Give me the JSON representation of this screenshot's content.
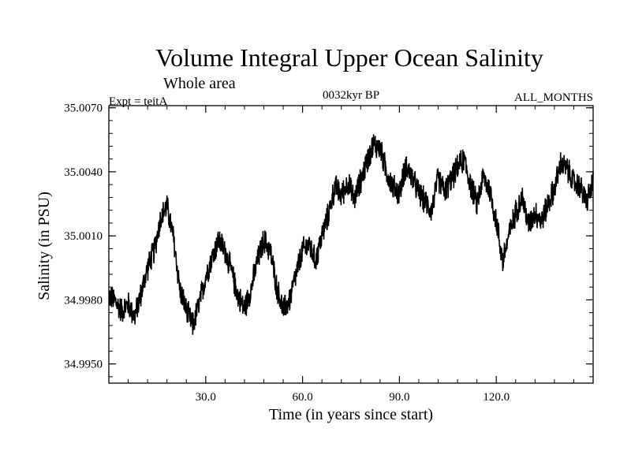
{
  "chart_data": {
    "type": "line",
    "title": "Volume Integral Upper Ocean Salinity",
    "subtitle": "Whole area",
    "experiment_label": "Expt = teitA",
    "period_label": "0032kyr BP",
    "months_label": "ALL_MONTHS",
    "xlabel": "Time (in years since start)",
    "ylabel": "Salinity (in PSU)",
    "xlim": [
      0.0,
      150.0
    ],
    "ylim": [
      34.9941,
      35.0071
    ],
    "x_ticks": [
      30.0,
      60.0,
      90.0,
      120.0
    ],
    "x_tick_labels": [
      "30.0",
      "60.0",
      "90.0",
      "120.0"
    ],
    "y_ticks": [
      34.995,
      34.998,
      35.001,
      35.004,
      35.007
    ],
    "y_tick_labels": [
      "34.9950",
      "34.9980",
      "35.0010",
      "35.0040",
      "35.0070"
    ],
    "line_color": "#000000",
    "series": [
      {
        "name": "Salinity",
        "x": [
          0,
          2,
          4,
          6,
          8,
          10,
          12,
          14,
          16,
          18,
          20,
          22,
          24,
          26,
          28,
          30,
          32,
          34,
          36,
          38,
          40,
          42,
          44,
          46,
          48,
          50,
          52,
          54,
          56,
          58,
          60,
          62,
          64,
          66,
          68,
          70,
          72,
          74,
          76,
          78,
          80,
          82,
          84,
          86,
          88,
          90,
          92,
          94,
          96,
          98,
          100,
          102,
          104,
          106,
          108,
          110,
          112,
          114,
          116,
          118,
          120,
          122,
          124,
          126,
          128,
          130,
          132,
          134,
          136,
          138,
          140,
          142,
          144,
          146,
          148,
          150
        ],
        "values": [
          34.9982,
          34.9979,
          34.9975,
          34.9978,
          34.9972,
          34.9983,
          34.9995,
          35.0003,
          35.0018,
          35.0024,
          35.0009,
          34.9985,
          34.9975,
          34.9968,
          34.9978,
          34.9991,
          35.0,
          35.0008,
          35.0003,
          34.9993,
          34.9982,
          34.9976,
          34.9985,
          34.9998,
          35.0008,
          35.0003,
          34.9986,
          34.9975,
          34.998,
          34.9992,
          35.0003,
          35.0006,
          34.9998,
          35.001,
          35.002,
          35.0033,
          35.0029,
          35.0035,
          35.0027,
          35.0036,
          35.0045,
          35.0053,
          35.0051,
          35.004,
          35.0033,
          35.003,
          35.0043,
          35.0037,
          35.003,
          35.0026,
          35.0022,
          35.0037,
          35.0031,
          35.0036,
          35.0042,
          35.0046,
          35.0034,
          35.0025,
          35.0038,
          35.0031,
          35.0017,
          34.9998,
          35.0011,
          35.0021,
          35.0028,
          35.0015,
          35.0021,
          35.0017,
          35.0025,
          35.0032,
          35.0044,
          35.0041,
          35.0035,
          35.0033,
          35.0026,
          35.0035
        ]
      }
    ]
  }
}
